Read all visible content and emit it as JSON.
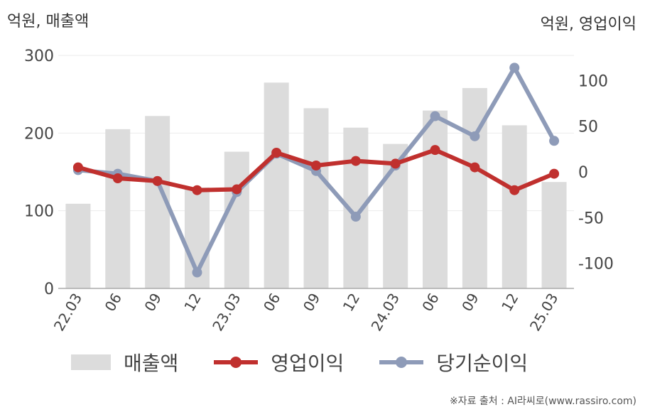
{
  "unit_left": "억원, 매출액",
  "unit_right": "억원, 영업이익",
  "source": "※자료 출처 : AI라씨로(www.rassiro.com)",
  "chart_data": {
    "type": "bar+line",
    "categories": [
      "22.03",
      "06",
      "09",
      "12",
      "23.03",
      "06",
      "09",
      "12",
      "24.03",
      "06",
      "09",
      "12",
      "25.03"
    ],
    "left_axis": {
      "ylim": [
        0,
        300
      ],
      "ticks": [
        "0",
        "100",
        "200",
        "300"
      ]
    },
    "right_axis": {
      "ylim": [
        -127.5,
        127.5
      ],
      "ticks": [
        "-100",
        "-50",
        "0",
        "50",
        "100"
      ]
    },
    "grid": true,
    "legend_position": "bottom",
    "series": [
      {
        "name": "매출액",
        "kind": "bar",
        "axis": "left",
        "color": "#dcdcdc",
        "values": [
          109,
          205,
          222,
          130,
          176,
          265,
          232,
          207,
          186,
          229,
          258,
          210,
          137
        ]
      },
      {
        "name": "영업이익",
        "kind": "line",
        "axis": "right",
        "color": "#c0302e",
        "values": [
          5,
          -7,
          -10,
          -20,
          -19,
          21,
          7,
          12,
          9,
          24,
          5,
          -20,
          -2
        ]
      },
      {
        "name": "당기순이익",
        "kind": "line",
        "axis": "right",
        "color": "#8e9bb8",
        "values": [
          2,
          -2,
          -10,
          -110,
          -22,
          20,
          1,
          -49,
          7,
          61,
          39,
          114,
          34
        ]
      }
    ]
  }
}
